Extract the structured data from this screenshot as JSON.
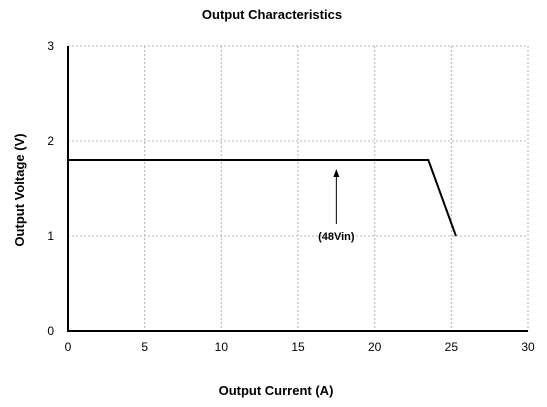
{
  "chart_data": {
    "type": "line",
    "title": "Output Characteristics",
    "xlabel": "Output Current (A)",
    "ylabel": "Output Voltage (V)",
    "xlim": [
      0,
      30
    ],
    "ylim": [
      0,
      3
    ],
    "xticks": [
      0,
      5,
      10,
      15,
      20,
      25,
      30
    ],
    "yticks": [
      0,
      1,
      2,
      3
    ],
    "grid": true,
    "series": [
      {
        "x": [
          0,
          23.5,
          25.3
        ],
        "y": [
          1.8,
          1.8,
          1.0
        ]
      }
    ],
    "annotations": [
      {
        "text": "(48Vin)",
        "x": 17.5,
        "y": 1.0,
        "arrow_to": {
          "x": 17.5,
          "y": 1.8
        }
      }
    ]
  }
}
